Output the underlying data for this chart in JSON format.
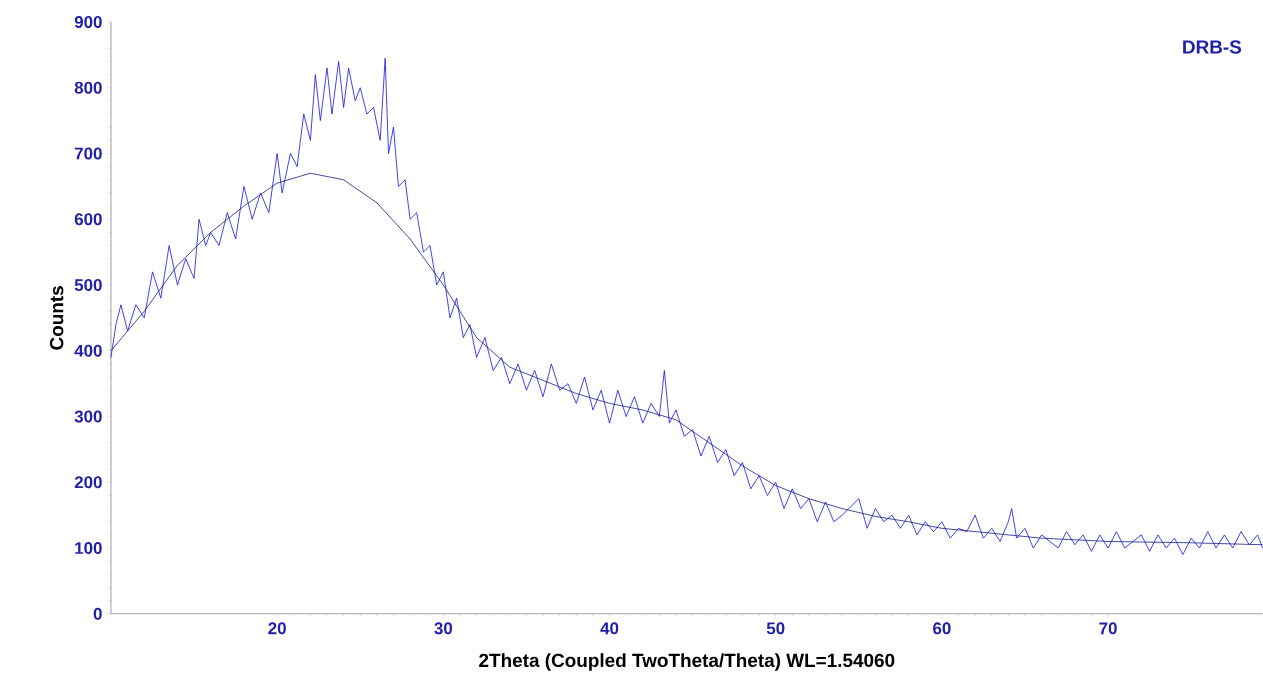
{
  "chart_data": {
    "type": "line",
    "xlabel": "2Theta (Coupled TwoTheta/Theta) WL=1.54060",
    "ylabel": "Counts",
    "annotations": [
      "DRB-S"
    ],
    "xlim": [
      10,
      79.3
    ],
    "ylim": [
      0,
      900
    ],
    "xticks": [
      20,
      30,
      40,
      50,
      60,
      70
    ],
    "yticks": [
      0,
      100,
      200,
      300,
      400,
      500,
      600,
      700,
      800,
      900
    ],
    "grid": false,
    "marker": "none",
    "line_style": "solid",
    "series": [
      {
        "color": "#1414e6",
        "x": [
          10,
          10.3,
          10.6,
          11,
          11.5,
          12,
          12.5,
          13,
          13.5,
          14,
          14.5,
          15,
          15.3,
          15.7,
          16,
          16.5,
          17,
          17.5,
          18,
          18.5,
          19,
          19.5,
          20,
          20.3,
          20.8,
          21.2,
          21.6,
          22,
          22.3,
          22.6,
          23,
          23.3,
          23.7,
          24,
          24.3,
          24.7,
          25,
          25.4,
          25.8,
          26.2,
          26.5,
          26.7,
          27,
          27.3,
          27.7,
          28,
          28.4,
          28.8,
          29.2,
          29.6,
          30,
          30.4,
          30.8,
          31.2,
          31.6,
          32,
          32.5,
          33,
          33.5,
          34,
          34.5,
          35,
          35.5,
          36,
          36.5,
          37,
          37.5,
          38,
          38.5,
          39,
          39.5,
          40,
          40.5,
          41,
          41.5,
          42,
          42.5,
          43,
          43.3,
          43.6,
          44,
          44.5,
          45,
          45.5,
          46,
          46.5,
          47,
          47.5,
          48,
          48.5,
          49,
          49.5,
          50,
          50.5,
          51,
          51.5,
          52,
          52.5,
          53,
          53.5,
          54,
          55,
          55.5,
          56,
          56.5,
          57,
          57.5,
          58,
          58.5,
          59,
          59.5,
          60,
          60.5,
          61,
          61.5,
          62,
          62.5,
          63,
          63.5,
          64,
          64.2,
          64.5,
          65,
          65.5,
          66,
          67,
          67.5,
          68,
          68.5,
          69,
          69.5,
          70,
          70.5,
          71,
          72,
          72.5,
          73,
          73.5,
          74,
          74.5,
          75,
          75.5,
          76,
          76.5,
          77,
          77.5,
          78,
          78.5,
          79,
          79.3
        ],
        "values": [
          390,
          440,
          470,
          430,
          470,
          450,
          520,
          480,
          560,
          500,
          540,
          510,
          600,
          560,
          580,
          560,
          610,
          570,
          650,
          600,
          640,
          610,
          700,
          640,
          700,
          680,
          760,
          720,
          820,
          750,
          830,
          760,
          840,
          770,
          830,
          780,
          800,
          760,
          770,
          720,
          845,
          700,
          740,
          650,
          660,
          600,
          610,
          550,
          560,
          500,
          520,
          450,
          480,
          420,
          440,
          390,
          420,
          370,
          390,
          350,
          380,
          340,
          370,
          330,
          380,
          340,
          350,
          320,
          360,
          310,
          340,
          290,
          340,
          300,
          330,
          290,
          320,
          300,
          370,
          290,
          310,
          270,
          280,
          240,
          270,
          230,
          250,
          210,
          230,
          190,
          210,
          180,
          200,
          160,
          190,
          160,
          175,
          140,
          170,
          140,
          150,
          175,
          130,
          160,
          140,
          150,
          130,
          150,
          120,
          140,
          125,
          140,
          115,
          130,
          125,
          150,
          115,
          130,
          110,
          140,
          160,
          115,
          130,
          100,
          120,
          100,
          125,
          105,
          120,
          95,
          120,
          100,
          125,
          100,
          120,
          95,
          120,
          100,
          115,
          90,
          115,
          100,
          125,
          100,
          120,
          100,
          125,
          105,
          120,
          100
        ]
      },
      {
        "color": "#1c1c8c",
        "x": [
          10,
          12,
          14,
          16,
          18,
          20,
          22,
          24,
          26,
          28,
          30,
          32,
          34,
          36,
          38,
          40,
          42,
          44,
          46,
          48,
          50,
          52,
          54,
          56,
          58,
          60,
          62,
          64,
          66,
          70,
          75,
          79.3
        ],
        "values": [
          400,
          460,
          530,
          580,
          620,
          655,
          670,
          660,
          625,
          570,
          500,
          420,
          375,
          355,
          335,
          320,
          310,
          295,
          260,
          225,
          195,
          175,
          160,
          148,
          140,
          130,
          125,
          120,
          115,
          110,
          108,
          105
        ]
      }
    ]
  }
}
